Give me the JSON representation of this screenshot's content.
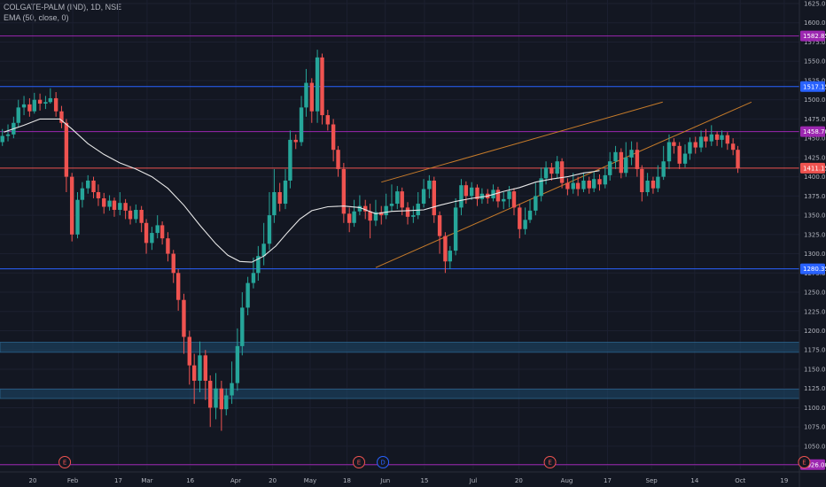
{
  "header": {
    "symbol": "COLGATE-PALM (IND), 1D, NSE",
    "indicator": "EMA (50, close, 0)"
  },
  "colors": {
    "background": "#131722",
    "up": "#26a69a",
    "down": "#ef5350",
    "ema": "#e8e8e8",
    "wedge": "#c67b2a",
    "purple": "#9c27b0",
    "blue": "#2962ff",
    "red_line": "#ef5350",
    "zone": "#1e4a6e"
  },
  "chart_data": {
    "type": "candlestick",
    "title": "",
    "ylim": [
      1020,
      1625
    ],
    "yticks": [
      1025,
      1050,
      1075,
      1100,
      1125,
      1150,
      1175,
      1200,
      1225,
      1250,
      1275,
      1300,
      1325,
      1350,
      1375,
      1400,
      1425,
      1450,
      1475,
      1500,
      1525,
      1550,
      1575,
      1600,
      1625
    ],
    "x_ticks": [
      {
        "label": "20",
        "pos": 0.041
      },
      {
        "label": "Feb",
        "pos": 0.091
      },
      {
        "label": "17",
        "pos": 0.148
      },
      {
        "label": "Mar",
        "pos": 0.184
      },
      {
        "label": "16",
        "pos": 0.238
      },
      {
        "label": "Apr",
        "pos": 0.295
      },
      {
        "label": "20",
        "pos": 0.341
      },
      {
        "label": "May",
        "pos": 0.388
      },
      {
        "label": "18",
        "pos": 0.434
      },
      {
        "label": "Jun",
        "pos": 0.482
      },
      {
        "label": "15",
        "pos": 0.531
      },
      {
        "label": "Jul",
        "pos": 0.592
      },
      {
        "label": "20",
        "pos": 0.649
      },
      {
        "label": "Aug",
        "pos": 0.709
      },
      {
        "label": "17",
        "pos": 0.76
      },
      {
        "label": "Sep",
        "pos": 0.815
      },
      {
        "label": "14",
        "pos": 0.869
      },
      {
        "label": "Oct",
        "pos": 0.926
      },
      {
        "label": "19",
        "pos": 0.981
      }
    ],
    "horizontal_levels": [
      {
        "label": "1582.85",
        "value": 1582.85,
        "color": "#9c27b0"
      },
      {
        "label": "1517.15",
        "value": 1517.15,
        "color": "#2962ff"
      },
      {
        "label": "1458.70",
        "value": 1458.7,
        "color": "#9c27b0"
      },
      {
        "label": "1411.15",
        "value": 1411.15,
        "color": "#ef5350"
      },
      {
        "label": "1280.35",
        "value": 1280.35,
        "color": "#2962ff"
      },
      {
        "label": "1026.00",
        "value": 1026.0,
        "color": "#9c27b0"
      }
    ],
    "zones": [
      {
        "from": 1172,
        "to": 1185
      },
      {
        "from": 1112,
        "to": 1124
      }
    ],
    "wedge_lines": [
      {
        "x1": 0.477,
        "y1": 1393,
        "x2": 0.829,
        "y2": 1497
      },
      {
        "x1": 0.47,
        "y1": 1282,
        "x2": 0.94,
        "y2": 1497
      }
    ],
    "events": [
      {
        "label": "E",
        "pos": 0.081,
        "color": "#ef5350"
      },
      {
        "label": "E",
        "pos": 0.449,
        "color": "#ef5350"
      },
      {
        "label": "D",
        "pos": 0.479,
        "color": "#2962ff"
      },
      {
        "label": "E",
        "pos": 0.688,
        "color": "#ef5350"
      },
      {
        "label": "E",
        "pos": 1.006,
        "color": "#ef5350"
      }
    ],
    "ema50": [
      [
        0.005,
        1458
      ],
      [
        0.03,
        1467
      ],
      [
        0.05,
        1475
      ],
      [
        0.075,
        1475
      ],
      [
        0.09,
        1462
      ],
      [
        0.11,
        1443
      ],
      [
        0.13,
        1429
      ],
      [
        0.15,
        1418
      ],
      [
        0.17,
        1410
      ],
      [
        0.19,
        1400
      ],
      [
        0.21,
        1385
      ],
      [
        0.23,
        1363
      ],
      [
        0.25,
        1337
      ],
      [
        0.27,
        1313
      ],
      [
        0.285,
        1298
      ],
      [
        0.3,
        1290
      ],
      [
        0.315,
        1289
      ],
      [
        0.33,
        1297
      ],
      [
        0.345,
        1310
      ],
      [
        0.36,
        1328
      ],
      [
        0.375,
        1345
      ],
      [
        0.39,
        1356
      ],
      [
        0.41,
        1361
      ],
      [
        0.43,
        1362
      ],
      [
        0.45,
        1360
      ],
      [
        0.47,
        1352
      ],
      [
        0.49,
        1355
      ],
      [
        0.51,
        1356
      ],
      [
        0.53,
        1357
      ],
      [
        0.55,
        1363
      ],
      [
        0.57,
        1368
      ],
      [
        0.59,
        1372
      ],
      [
        0.61,
        1375
      ],
      [
        0.63,
        1381
      ],
      [
        0.65,
        1386
      ],
      [
        0.67,
        1393
      ],
      [
        0.69,
        1397
      ],
      [
        0.71,
        1400
      ],
      [
        0.73,
        1405
      ],
      [
        0.745,
        1407
      ],
      [
        0.75,
        1408
      ]
    ],
    "candles": [
      [
        0.003,
        1445,
        1453,
        1462,
        1440
      ],
      [
        0.01,
        1453,
        1455,
        1468,
        1446
      ],
      [
        0.017,
        1455,
        1470,
        1478,
        1450
      ],
      [
        0.023,
        1470,
        1490,
        1500,
        1465
      ],
      [
        0.03,
        1490,
        1494,
        1505,
        1480
      ],
      [
        0.037,
        1494,
        1485,
        1502,
        1478
      ],
      [
        0.043,
        1485,
        1500,
        1509,
        1482
      ],
      [
        0.05,
        1500,
        1495,
        1508,
        1486
      ],
      [
        0.057,
        1495,
        1497,
        1505,
        1488
      ],
      [
        0.063,
        1497,
        1502,
        1515,
        1495
      ],
      [
        0.07,
        1502,
        1485,
        1510,
        1478
      ],
      [
        0.077,
        1485,
        1470,
        1492,
        1463
      ],
      [
        0.083,
        1470,
        1400,
        1475,
        1380
      ],
      [
        0.09,
        1400,
        1325,
        1405,
        1316
      ],
      [
        0.097,
        1325,
        1370,
        1380,
        1320
      ],
      [
        0.103,
        1370,
        1385,
        1393,
        1360
      ],
      [
        0.11,
        1385,
        1395,
        1402,
        1378
      ],
      [
        0.117,
        1395,
        1380,
        1400,
        1372
      ],
      [
        0.123,
        1380,
        1372,
        1390,
        1362
      ],
      [
        0.13,
        1372,
        1361,
        1379,
        1352
      ],
      [
        0.137,
        1361,
        1369,
        1376,
        1356
      ],
      [
        0.143,
        1369,
        1357,
        1373,
        1348
      ],
      [
        0.15,
        1357,
        1366,
        1380,
        1350
      ],
      [
        0.157,
        1366,
        1356,
        1371,
        1345
      ],
      [
        0.163,
        1356,
        1345,
        1362,
        1338
      ],
      [
        0.17,
        1345,
        1357,
        1364,
        1340
      ],
      [
        0.177,
        1357,
        1340,
        1362,
        1328
      ],
      [
        0.183,
        1340,
        1314,
        1345,
        1300
      ],
      [
        0.19,
        1314,
        1327,
        1335,
        1305
      ],
      [
        0.197,
        1327,
        1337,
        1350,
        1320
      ],
      [
        0.203,
        1337,
        1320,
        1342,
        1312
      ],
      [
        0.21,
        1320,
        1300,
        1328,
        1290
      ],
      [
        0.217,
        1300,
        1275,
        1305,
        1262
      ],
      [
        0.223,
        1275,
        1240,
        1280,
        1226
      ],
      [
        0.23,
        1240,
        1192,
        1248,
        1170
      ],
      [
        0.237,
        1192,
        1155,
        1200,
        1130
      ],
      [
        0.243,
        1155,
        1135,
        1170,
        1105
      ],
      [
        0.25,
        1135,
        1168,
        1186,
        1120
      ],
      [
        0.257,
        1168,
        1135,
        1175,
        1110
      ],
      [
        0.263,
        1135,
        1100,
        1142,
        1075
      ],
      [
        0.27,
        1100,
        1125,
        1145,
        1085
      ],
      [
        0.277,
        1125,
        1098,
        1135,
        1070
      ],
      [
        0.283,
        1098,
        1116,
        1125,
        1090
      ],
      [
        0.29,
        1116,
        1132,
        1160,
        1105
      ],
      [
        0.297,
        1132,
        1180,
        1203,
        1122
      ],
      [
        0.303,
        1180,
        1230,
        1250,
        1168
      ],
      [
        0.31,
        1230,
        1262,
        1270,
        1220
      ],
      [
        0.317,
        1262,
        1275,
        1295,
        1255
      ],
      [
        0.323,
        1275,
        1297,
        1310,
        1265
      ],
      [
        0.33,
        1297,
        1313,
        1340,
        1285
      ],
      [
        0.337,
        1313,
        1350,
        1380,
        1305
      ],
      [
        0.343,
        1350,
        1380,
        1410,
        1340
      ],
      [
        0.35,
        1380,
        1365,
        1392,
        1355
      ],
      [
        0.357,
        1365,
        1395,
        1410,
        1358
      ],
      [
        0.363,
        1395,
        1448,
        1460,
        1385
      ],
      [
        0.37,
        1448,
        1445,
        1455,
        1436
      ],
      [
        0.377,
        1445,
        1490,
        1505,
        1440
      ],
      [
        0.383,
        1490,
        1522,
        1540,
        1478
      ],
      [
        0.39,
        1522,
        1485,
        1528,
        1470
      ],
      [
        0.397,
        1485,
        1555,
        1565,
        1470
      ],
      [
        0.403,
        1555,
        1480,
        1560,
        1468
      ],
      [
        0.41,
        1480,
        1468,
        1487,
        1460
      ],
      [
        0.417,
        1468,
        1435,
        1475,
        1420
      ],
      [
        0.423,
        1435,
        1410,
        1440,
        1400
      ],
      [
        0.43,
        1410,
        1352,
        1418,
        1340
      ],
      [
        0.437,
        1352,
        1340,
        1360,
        1328
      ],
      [
        0.443,
        1340,
        1355,
        1370,
        1335
      ],
      [
        0.45,
        1355,
        1362,
        1376,
        1350
      ],
      [
        0.457,
        1362,
        1355,
        1370,
        1345
      ],
      [
        0.463,
        1355,
        1343,
        1365,
        1320
      ],
      [
        0.47,
        1343,
        1354,
        1370,
        1336
      ],
      [
        0.477,
        1354,
        1350,
        1362,
        1338
      ],
      [
        0.483,
        1350,
        1362,
        1378,
        1345
      ],
      [
        0.49,
        1362,
        1365,
        1390,
        1355
      ],
      [
        0.497,
        1365,
        1381,
        1388,
        1358
      ],
      [
        0.503,
        1381,
        1360,
        1386,
        1350
      ],
      [
        0.51,
        1360,
        1348,
        1367,
        1338
      ],
      [
        0.517,
        1348,
        1350,
        1362,
        1340
      ],
      [
        0.523,
        1350,
        1365,
        1380,
        1345
      ],
      [
        0.53,
        1365,
        1384,
        1397,
        1360
      ],
      [
        0.537,
        1384,
        1395,
        1402,
        1372
      ],
      [
        0.543,
        1395,
        1350,
        1400,
        1340
      ],
      [
        0.55,
        1350,
        1323,
        1355,
        1300
      ],
      [
        0.557,
        1323,
        1290,
        1328,
        1275
      ],
      [
        0.563,
        1290,
        1304,
        1310,
        1280
      ],
      [
        0.57,
        1304,
        1360,
        1372,
        1298
      ],
      [
        0.577,
        1360,
        1389,
        1397,
        1350
      ],
      [
        0.583,
        1389,
        1375,
        1394,
        1365
      ],
      [
        0.59,
        1375,
        1386,
        1393,
        1370
      ],
      [
        0.597,
        1386,
        1371,
        1390,
        1362
      ],
      [
        0.603,
        1371,
        1378,
        1385,
        1365
      ],
      [
        0.61,
        1378,
        1372,
        1384,
        1365
      ],
      [
        0.617,
        1372,
        1383,
        1390,
        1368
      ],
      [
        0.623,
        1383,
        1368,
        1387,
        1360
      ],
      [
        0.63,
        1368,
        1371,
        1380,
        1358
      ],
      [
        0.637,
        1371,
        1381,
        1388,
        1360
      ],
      [
        0.643,
        1381,
        1360,
        1385,
        1350
      ],
      [
        0.65,
        1360,
        1332,
        1365,
        1320
      ],
      [
        0.657,
        1332,
        1344,
        1360,
        1325
      ],
      [
        0.663,
        1344,
        1356,
        1370,
        1340
      ],
      [
        0.67,
        1356,
        1375,
        1392,
        1350
      ],
      [
        0.677,
        1375,
        1398,
        1412,
        1368
      ],
      [
        0.683,
        1398,
        1412,
        1420,
        1390
      ],
      [
        0.69,
        1412,
        1404,
        1418,
        1395
      ],
      [
        0.697,
        1404,
        1420,
        1427,
        1398
      ],
      [
        0.703,
        1420,
        1392,
        1424,
        1385
      ],
      [
        0.71,
        1392,
        1384,
        1398,
        1376
      ],
      [
        0.717,
        1384,
        1392,
        1405,
        1378
      ],
      [
        0.723,
        1392,
        1384,
        1400,
        1375
      ],
      [
        0.73,
        1384,
        1395,
        1405,
        1380
      ],
      [
        0.737,
        1395,
        1385,
        1400,
        1378
      ],
      [
        0.743,
        1385,
        1397,
        1406,
        1380
      ],
      [
        0.75,
        1397,
        1390,
        1403,
        1382
      ],
      [
        0.757,
        1390,
        1402,
        1412,
        1385
      ],
      [
        0.763,
        1402,
        1420,
        1432,
        1395
      ],
      [
        0.77,
        1420,
        1432,
        1440,
        1410
      ],
      [
        0.777,
        1432,
        1405,
        1437,
        1398
      ],
      [
        0.783,
        1405,
        1425,
        1445,
        1400
      ],
      [
        0.79,
        1425,
        1435,
        1446,
        1415
      ],
      [
        0.797,
        1435,
        1410,
        1445,
        1400
      ],
      [
        0.803,
        1410,
        1380,
        1415,
        1368
      ],
      [
        0.81,
        1380,
        1395,
        1405,
        1375
      ],
      [
        0.817,
        1395,
        1385,
        1400,
        1378
      ],
      [
        0.823,
        1385,
        1400,
        1415,
        1380
      ],
      [
        0.83,
        1400,
        1420,
        1440,
        1396
      ],
      [
        0.837,
        1420,
        1445,
        1455,
        1410
      ],
      [
        0.843,
        1445,
        1440,
        1450,
        1430
      ],
      [
        0.85,
        1440,
        1417,
        1445,
        1410
      ],
      [
        0.857,
        1417,
        1430,
        1442,
        1412
      ],
      [
        0.863,
        1430,
        1445,
        1451,
        1422
      ],
      [
        0.87,
        1445,
        1438,
        1452,
        1430
      ],
      [
        0.877,
        1438,
        1452,
        1460,
        1432
      ],
      [
        0.883,
        1452,
        1446,
        1462,
        1438
      ],
      [
        0.89,
        1446,
        1455,
        1467,
        1440
      ],
      [
        0.897,
        1455,
        1448,
        1459,
        1440
      ],
      [
        0.903,
        1448,
        1454,
        1460,
        1438
      ],
      [
        0.91,
        1454,
        1443,
        1458,
        1435
      ],
      [
        0.917,
        1443,
        1435,
        1450,
        1428
      ],
      [
        0.923,
        1435,
        1411,
        1440,
        1405
      ]
    ]
  }
}
